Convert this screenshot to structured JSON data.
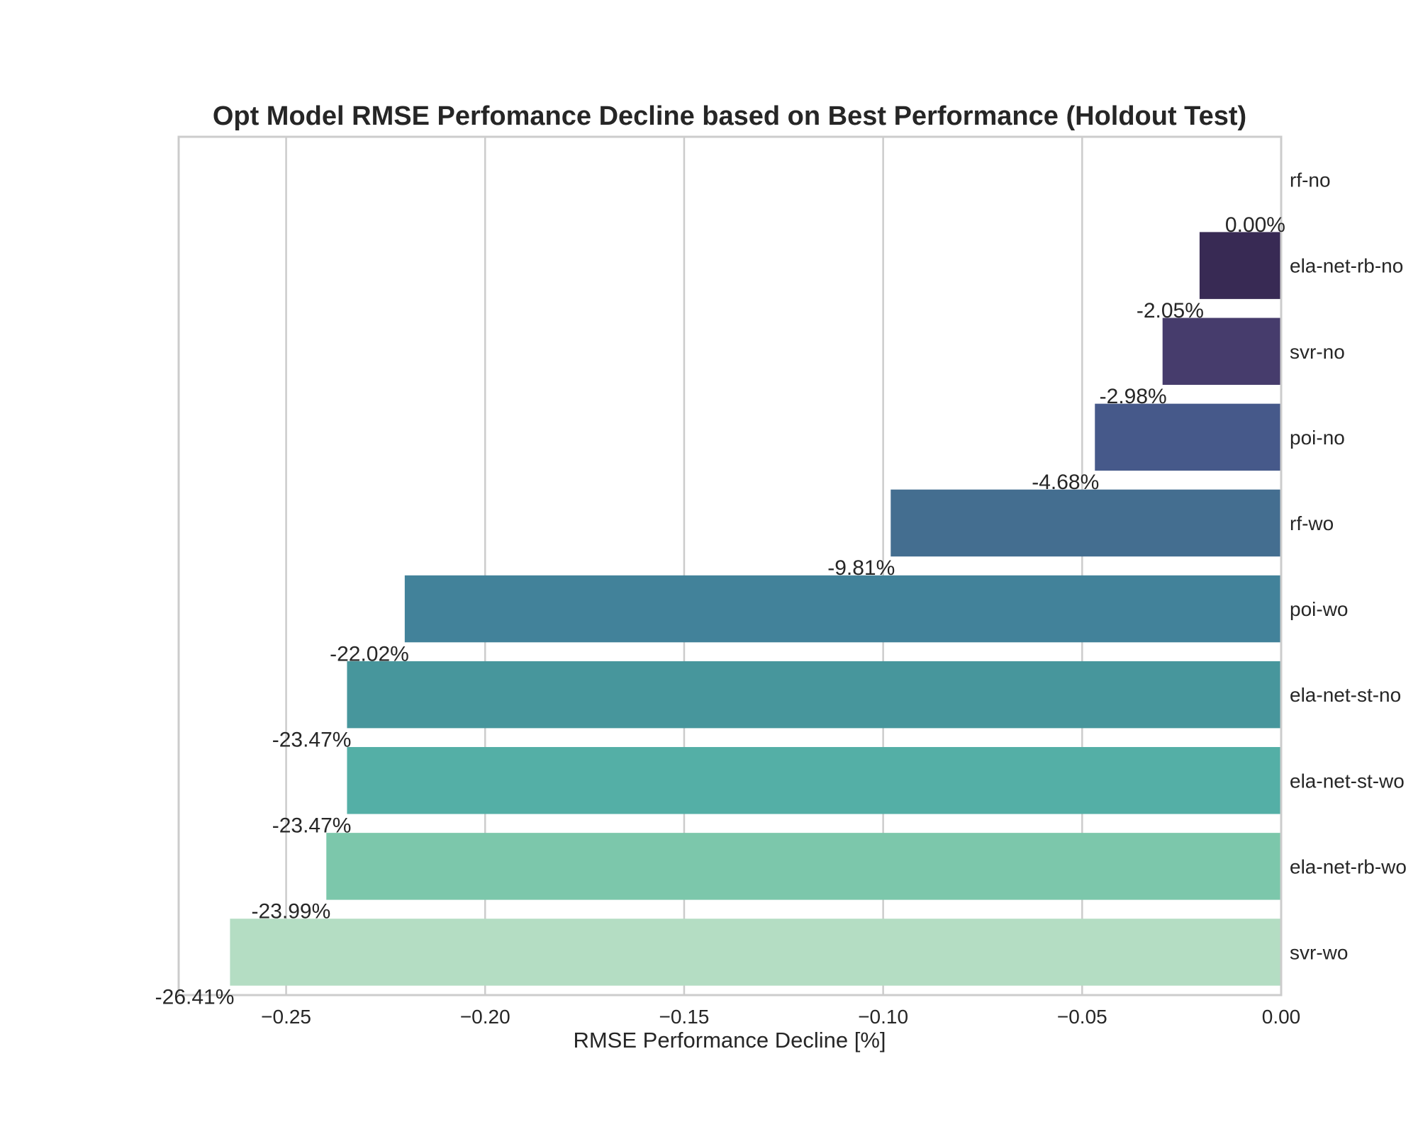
{
  "chart_data": {
    "type": "bar",
    "orientation": "horizontal",
    "title": "Opt Model RMSE Perfomance Decline based on Best Performance (Holdout Test)",
    "xlabel": "RMSE Performance Decline [%]",
    "ylabel": "",
    "xlim": [
      -0.277,
      0.0
    ],
    "xticks": [
      -0.25,
      -0.2,
      -0.15,
      -0.1,
      -0.05,
      0.0
    ],
    "xtick_labels": [
      "−0.25",
      "−0.20",
      "−0.15",
      "−0.10",
      "−0.05",
      "0.00"
    ],
    "grid": "vertical",
    "legend": "none",
    "categories": [
      "rf-no",
      "ela-net-rb-no",
      "svr-no",
      "poi-no",
      "rf-wo",
      "poi-wo",
      "ela-net-st-no",
      "ela-net-st-wo",
      "ela-net-rb-wo",
      "svr-wo"
    ],
    "values": [
      0.0,
      -0.0205,
      -0.0298,
      -0.0468,
      -0.0981,
      -0.2202,
      -0.2347,
      -0.2347,
      -0.2399,
      -0.2641
    ],
    "data_labels": [
      "0.00%",
      "-2.05%",
      "-2.98%",
      "-4.68%",
      "-9.81%",
      "-22.02%",
      "-23.47%",
      "-23.47%",
      "-23.99%",
      "-26.41%"
    ],
    "colors": [
      "#35193e",
      "#382a54",
      "#463c6c",
      "#46598a",
      "#446e90",
      "#42829a",
      "#47969c",
      "#54afa6",
      "#7cc7ab",
      "#b4ddc3"
    ]
  }
}
